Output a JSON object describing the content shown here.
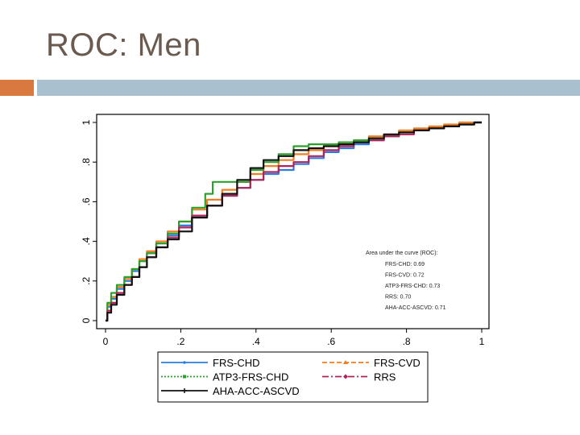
{
  "slide": {
    "title": "ROC: Men"
  },
  "colors": {
    "accent_orange": "#d9783f",
    "accent_blue": "#a9c0cf",
    "title": "#6a5a50"
  },
  "chart_data": {
    "type": "line",
    "title": "",
    "xlabel": "",
    "ylabel": "",
    "xlim": [
      0,
      1
    ],
    "ylim": [
      0,
      1
    ],
    "xticks": [
      "0",
      ".2",
      ".4",
      ".6",
      ".8",
      "1"
    ],
    "yticks": [
      "0",
      ".2",
      ".4",
      ".6",
      ".8",
      "1"
    ],
    "legend_position": "bottom",
    "auc_box": {
      "title": "Area under the curve (ROC):",
      "lines": [
        "FRS-CHD: 0.69",
        "FRS-CVD: 0.72",
        "ATP3-FRS-CHD: 0.73",
        "RRS: 0.70",
        "AHA-ACC-ASCVD: 0.71"
      ]
    },
    "series": [
      {
        "name": "FRS-CHD",
        "color": "#2b7de0",
        "dash": "",
        "marker": "dot",
        "x": [
          0,
          0.01,
          0.02,
          0.04,
          0.06,
          0.08,
          0.1,
          0.12,
          0.15,
          0.18,
          0.21,
          0.25,
          0.29,
          0.33,
          0.37,
          0.4,
          0.44,
          0.48,
          0.52,
          0.56,
          0.6,
          0.64,
          0.68,
          0.72,
          0.76,
          0.8,
          0.84,
          0.88,
          0.92,
          0.96,
          1.0
        ],
        "y": [
          0,
          0.07,
          0.11,
          0.16,
          0.2,
          0.25,
          0.3,
          0.34,
          0.39,
          0.43,
          0.48,
          0.53,
          0.58,
          0.63,
          0.67,
          0.71,
          0.74,
          0.76,
          0.79,
          0.82,
          0.85,
          0.87,
          0.89,
          0.91,
          0.93,
          0.95,
          0.96,
          0.97,
          0.98,
          0.99,
          1.0
        ]
      },
      {
        "name": "FRS-CVD",
        "color": "#f07e22",
        "dash": "6,3",
        "marker": "triangle",
        "x": [
          0,
          0.01,
          0.02,
          0.04,
          0.06,
          0.08,
          0.1,
          0.12,
          0.15,
          0.18,
          0.21,
          0.25,
          0.29,
          0.33,
          0.37,
          0.4,
          0.44,
          0.48,
          0.52,
          0.56,
          0.6,
          0.64,
          0.68,
          0.72,
          0.76,
          0.8,
          0.84,
          0.88,
          0.92,
          0.96,
          1.0
        ],
        "y": [
          0,
          0.08,
          0.12,
          0.17,
          0.21,
          0.26,
          0.31,
          0.35,
          0.4,
          0.45,
          0.5,
          0.56,
          0.61,
          0.66,
          0.7,
          0.74,
          0.78,
          0.81,
          0.84,
          0.86,
          0.88,
          0.9,
          0.91,
          0.93,
          0.94,
          0.96,
          0.97,
          0.98,
          0.99,
          1.0,
          1.0
        ]
      },
      {
        "name": "ATP3-FRS-CHD",
        "color": "#2ca02c",
        "dash": "2,2",
        "marker": "square",
        "x": [
          0,
          0.01,
          0.02,
          0.04,
          0.06,
          0.08,
          0.1,
          0.12,
          0.15,
          0.18,
          0.21,
          0.25,
          0.28,
          0.29,
          0.33,
          0.37,
          0.4,
          0.44,
          0.48,
          0.52,
          0.56,
          0.6,
          0.64,
          0.68,
          0.72,
          0.76,
          0.8,
          0.84,
          0.88,
          0.92,
          0.96,
          1.0
        ],
        "y": [
          0,
          0.09,
          0.14,
          0.18,
          0.22,
          0.26,
          0.3,
          0.34,
          0.39,
          0.44,
          0.5,
          0.57,
          0.64,
          0.7,
          0.7,
          0.7,
          0.76,
          0.8,
          0.84,
          0.88,
          0.89,
          0.89,
          0.9,
          0.91,
          0.92,
          0.93,
          0.95,
          0.96,
          0.97,
          0.98,
          0.99,
          1.0
        ]
      },
      {
        "name": "RRS",
        "color": "#b0245a",
        "dash": "8,3,2,3",
        "marker": "diamond",
        "x": [
          0,
          0.01,
          0.02,
          0.04,
          0.06,
          0.08,
          0.1,
          0.12,
          0.15,
          0.18,
          0.21,
          0.25,
          0.29,
          0.33,
          0.37,
          0.4,
          0.44,
          0.48,
          0.52,
          0.56,
          0.6,
          0.64,
          0.68,
          0.72,
          0.76,
          0.8,
          0.84,
          0.88,
          0.92,
          0.96,
          1.0
        ],
        "y": [
          0,
          0.05,
          0.09,
          0.14,
          0.18,
          0.22,
          0.27,
          0.32,
          0.37,
          0.42,
          0.47,
          0.53,
          0.58,
          0.63,
          0.67,
          0.71,
          0.75,
          0.78,
          0.8,
          0.83,
          0.86,
          0.88,
          0.9,
          0.91,
          0.93,
          0.94,
          0.96,
          0.97,
          0.98,
          0.99,
          1.0
        ]
      },
      {
        "name": "AHA-ACC-ASCVD",
        "color": "#111111",
        "dash": "",
        "marker": "plus",
        "x": [
          0,
          0.01,
          0.02,
          0.04,
          0.06,
          0.08,
          0.1,
          0.12,
          0.15,
          0.18,
          0.21,
          0.25,
          0.29,
          0.33,
          0.37,
          0.4,
          0.44,
          0.48,
          0.52,
          0.56,
          0.6,
          0.64,
          0.68,
          0.72,
          0.76,
          0.8,
          0.84,
          0.88,
          0.92,
          0.96,
          1.0
        ],
        "y": [
          0,
          0.04,
          0.08,
          0.13,
          0.18,
          0.22,
          0.27,
          0.32,
          0.37,
          0.41,
          0.45,
          0.52,
          0.58,
          0.64,
          0.71,
          0.77,
          0.81,
          0.83,
          0.86,
          0.87,
          0.88,
          0.89,
          0.9,
          0.92,
          0.94,
          0.95,
          0.96,
          0.97,
          0.98,
          0.99,
          1.0
        ]
      }
    ]
  }
}
